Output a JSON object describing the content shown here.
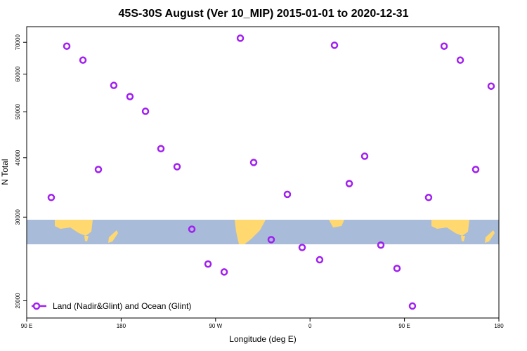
{
  "chart_data": {
    "type": "scatter",
    "title": "45S-30S August (Ver 10_MIP)   2015-01-01 to 2020-12-31",
    "x_label": "Longitude (deg E)",
    "y_label": "N Total",
    "ylog": true,
    "xlim": [
      90,
      540
    ],
    "xticks": [
      {
        "value": 90,
        "label": "90 E"
      },
      180,
      {
        "value": 270,
        "label": "90 W"
      },
      {
        "value": 360,
        "label": "0"
      },
      {
        "value": 450,
        "label": "90 E"
      },
      {
        "value": 540,
        "label": "180"
      }
    ],
    "ylim": [
      18400,
      75500
    ],
    "yticks": [
      20000,
      30000,
      40000,
      50000,
      60000,
      70000
    ],
    "legend": "bottom-left",
    "series": [
      {
        "name": "Land (Nadir&Glint) and Ocean (Glint)",
        "color": "#a020f0",
        "x": [
          113.4,
          128.2,
          143.6,
          158.3,
          173,
          188.4,
          203.2,
          217.9,
          233.3,
          247.4,
          262.8,
          278.2,
          293.6,
          306.3,
          323,
          338.4,
          352.5,
          369.2,
          383.3,
          397.4,
          412.1,
          427.5,
          442.9,
          457.6,
          473,
          487.8,
          503.2,
          517.9,
          532.6
        ],
        "values": [
          33000,
          68700,
          64200,
          37800,
          56800,
          53800,
          50100,
          41800,
          38300,
          28300,
          23900,
          23000,
          71400,
          39100,
          26900,
          33500,
          25900,
          24400,
          69000,
          35300,
          40300,
          26200,
          23400,
          19500,
          33000,
          68700,
          64200,
          37800,
          56600
        ]
      }
    ]
  }
}
